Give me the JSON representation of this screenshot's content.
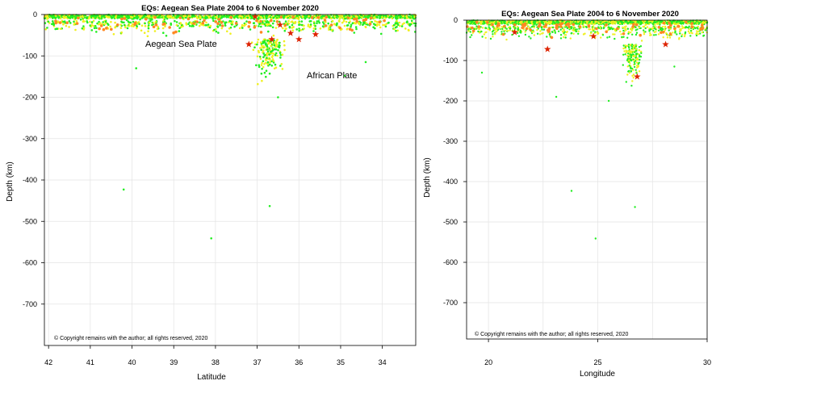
{
  "chart_data": [
    {
      "type": "scatter",
      "title": "EQs: Aegean Sea Plate 2004 to 6 November 2020",
      "xlabel": "Latitude",
      "ylabel": "Depth (km)",
      "xlim": [
        42.1,
        33.2
      ],
      "ylim": [
        -800,
        0
      ],
      "x_ticks": [
        "42",
        "41",
        "40",
        "39",
        "38",
        "37",
        "36",
        "35",
        "34"
      ],
      "y_ticks": [
        "0",
        "-100",
        "-200",
        "-300",
        "-400",
        "-500",
        "-600",
        "-700"
      ],
      "annotations": [
        "Aegean Sea Plate",
        "African Plate"
      ],
      "copyright": "© Copyright remains with the author; all rights reserved, 2020",
      "series_colors": {
        "shallow": "#22ee22",
        "intermediate": "#f0f020",
        "larger": "#ff8822",
        "largest": "#dd2200"
      },
      "outliers": [
        {
          "x": 40.2,
          "y": -423
        },
        {
          "x": 38.1,
          "y": -541
        },
        {
          "x": 36.7,
          "y": -463
        },
        {
          "x": 39.9,
          "y": -130
        },
        {
          "x": 36.5,
          "y": -200
        },
        {
          "x": 34.9,
          "y": -148
        },
        {
          "x": 34.4,
          "y": -115
        }
      ],
      "stars": [
        {
          "x": 36.45,
          "y": -25
        },
        {
          "x": 36.0,
          "y": -60
        },
        {
          "x": 37.2,
          "y": -72
        },
        {
          "x": 36.2,
          "y": -45
        },
        {
          "x": 35.6,
          "y": -48
        },
        {
          "x": 37.05,
          "y": -5
        },
        {
          "x": 36.65,
          "y": -60
        }
      ]
    },
    {
      "type": "scatter",
      "title": "EQs: Aegean Sea Plate 2004 to 6 November 2020",
      "xlabel": "Longitude",
      "ylabel": "Depth (km)",
      "xlim": [
        19.0,
        30.0
      ],
      "ylim": [
        -790,
        0
      ],
      "x_ticks": [
        "20",
        "25",
        "30"
      ],
      "y_ticks": [
        "0",
        "-100",
        "-200",
        "-300",
        "-400",
        "-500",
        "-600",
        "-700"
      ],
      "annotations": [],
      "copyright": "© Copyright remains with the author; all rights reserved, 2020",
      "series_colors": {
        "shallow": "#22ee22",
        "intermediate": "#f0f020",
        "larger": "#ff8822",
        "largest": "#dd2200"
      },
      "outliers": [
        {
          "x": 23.8,
          "y": -423
        },
        {
          "x": 24.9,
          "y": -541
        },
        {
          "x": 26.7,
          "y": -463
        },
        {
          "x": 19.7,
          "y": -130
        },
        {
          "x": 25.5,
          "y": -200
        },
        {
          "x": 23.1,
          "y": -190
        },
        {
          "x": 28.5,
          "y": -115
        }
      ],
      "stars": [
        {
          "x": 22.7,
          "y": -72
        },
        {
          "x": 26.8,
          "y": -140
        },
        {
          "x": 24.8,
          "y": -40
        },
        {
          "x": 28.1,
          "y": -60
        },
        {
          "x": 21.2,
          "y": -30
        }
      ]
    }
  ]
}
